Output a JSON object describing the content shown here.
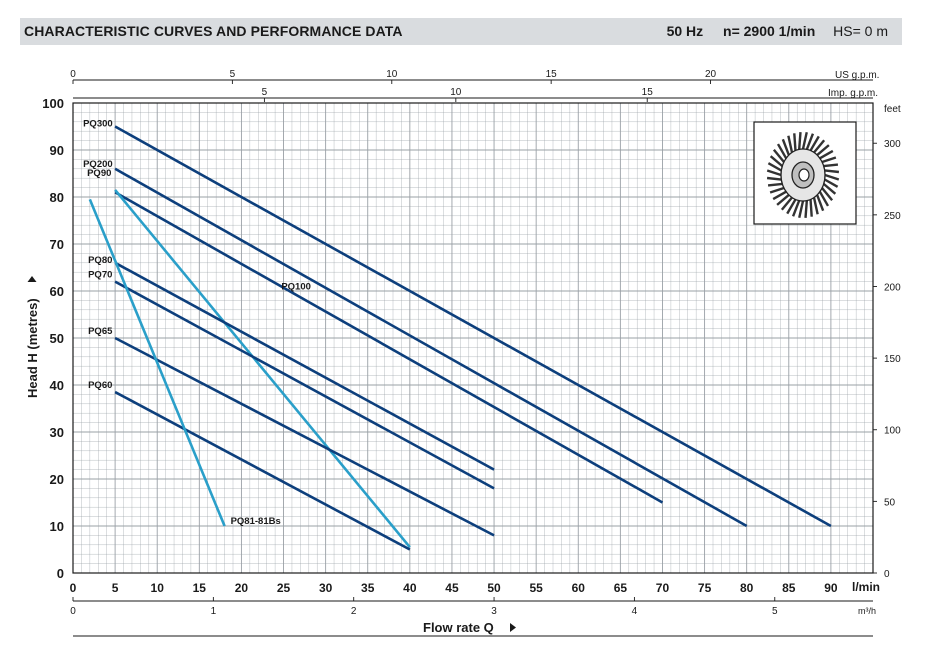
{
  "header": {
    "title": "CHARACTERISTIC CURVES AND PERFORMANCE DATA",
    "frequency": "50 Hz",
    "speed": "n= 2900  1/min",
    "suction": "HS= 0 m"
  },
  "colors": {
    "dark_curve": "#0d3f7c",
    "light_curve": "#2a9fc9",
    "grid": "#9aa0a6",
    "header_bg": "#d9dcdf"
  },
  "icons": [
    "impeller-icon",
    "arrow-right-icon",
    "arrow-up-icon"
  ],
  "chart_data": {
    "type": "line",
    "xlabel": "Flow rate  Q",
    "x_unit": "l/min",
    "ylabel": "Head H (metres)",
    "xlim": [
      0,
      95
    ],
    "ylim": [
      0,
      100
    ],
    "x_ticks": [
      "0",
      "5",
      "10",
      "15",
      "20",
      "25",
      "30",
      "35",
      "40",
      "45",
      "50",
      "55",
      "60",
      "65",
      "70",
      "75",
      "80",
      "85",
      "90"
    ],
    "y_ticks": [
      "0",
      "10",
      "20",
      "30",
      "40",
      "50",
      "60",
      "70",
      "80",
      "90",
      "100"
    ],
    "secondary_axes": {
      "us_gpm": {
        "unit": "US g.p.m.",
        "ticks": [
          "0",
          "5",
          "10",
          "15",
          "20"
        ]
      },
      "imp_gpm": {
        "unit": "Imp. g.p.m.",
        "ticks": [
          "5",
          "10",
          "15"
        ]
      },
      "m3h": {
        "unit": "m³/h",
        "ticks": [
          "0",
          "1",
          "2",
          "3",
          "4",
          "5"
        ]
      },
      "feet": {
        "unit": "feet",
        "ticks": [
          "0",
          "50",
          "100",
          "150",
          "200",
          "250",
          "300"
        ]
      }
    },
    "series": [
      {
        "name": "PQ300",
        "color": "dark",
        "x": [
          5,
          90
        ],
        "y": [
          95,
          10
        ]
      },
      {
        "name": "PQ200",
        "color": "dark",
        "x": [
          5,
          80
        ],
        "y": [
          86,
          10
        ]
      },
      {
        "name": "PQ100",
        "color": "dark",
        "x": [
          5,
          70
        ],
        "y": [
          81,
          15
        ]
      },
      {
        "name": "PQ90",
        "color": "light",
        "x": [
          5,
          40
        ],
        "y": [
          81.5,
          5.5
        ]
      },
      {
        "name": "PQ80",
        "color": "dark",
        "x": [
          5,
          50
        ],
        "y": [
          66,
          22
        ]
      },
      {
        "name": "PQ70",
        "color": "dark",
        "x": [
          5,
          50
        ],
        "y": [
          62,
          18
        ]
      },
      {
        "name": "PQ65",
        "color": "dark",
        "x": [
          5,
          50
        ],
        "y": [
          50,
          8
        ]
      },
      {
        "name": "PQ60",
        "color": "dark",
        "x": [
          5,
          40
        ],
        "y": [
          38.5,
          5
        ]
      },
      {
        "name": "PQ81-81Bs",
        "color": "light",
        "x": [
          2,
          18
        ],
        "y": [
          79.5,
          10
        ]
      }
    ]
  }
}
